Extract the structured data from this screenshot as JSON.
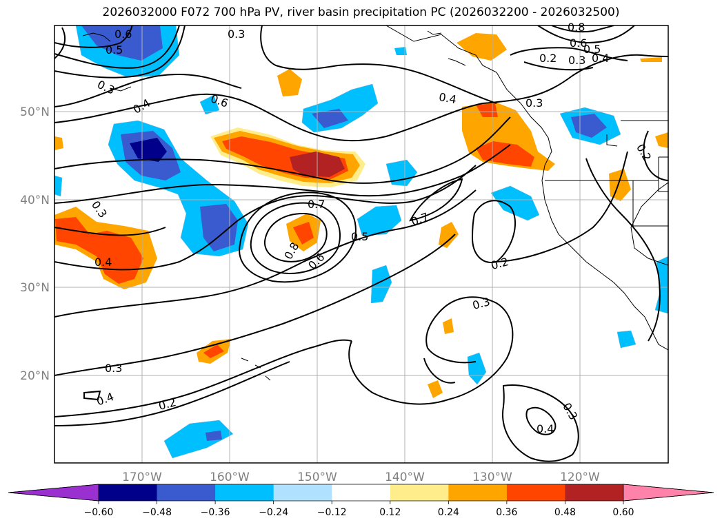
{
  "title": "2026032000 F072 700 hPa PV, river basin precipitation PC (2026032200 - 2026032500)",
  "lon_ticks": [
    "170°W",
    "160°W",
    "150°W",
    "140°W",
    "130°W",
    "120°W"
  ],
  "lat_ticks": [
    "50°N",
    "40°N",
    "30°N",
    "20°N"
  ],
  "colorbar": {
    "ticks": [
      "−0.60",
      "−0.48",
      "−0.36",
      "−0.24",
      "−0.12",
      "0.12",
      "0.24",
      "0.36",
      "0.48",
      "0.60"
    ],
    "colors": [
      "#9b30d0",
      "#00008b",
      "#3a5bcf",
      "#00bfff",
      "#b0e2ff",
      "#ffffff",
      "#ffec8b",
      "#ffa500",
      "#ff4500",
      "#b22222",
      "#ff82ab"
    ]
  },
  "contour_labels": [
    {
      "id": "c1",
      "text": "0.6"
    },
    {
      "id": "c2",
      "text": "0.5"
    },
    {
      "id": "c3",
      "text": "0.3"
    },
    {
      "id": "c4",
      "text": "0.4"
    },
    {
      "id": "c5",
      "text": "0.6"
    },
    {
      "id": "c6",
      "text": "0.4"
    },
    {
      "id": "c7",
      "text": "0.3"
    },
    {
      "id": "c8",
      "text": "0.3"
    },
    {
      "id": "c9",
      "text": "0.4"
    },
    {
      "id": "c10",
      "text": "0.7"
    },
    {
      "id": "c11",
      "text": "0.8"
    },
    {
      "id": "c12",
      "text": "0.6"
    },
    {
      "id": "c13",
      "text": "0.5"
    },
    {
      "id": "c14",
      "text": "0.7"
    },
    {
      "id": "c15",
      "text": "0.2"
    },
    {
      "id": "c16",
      "text": "0.3"
    },
    {
      "id": "c17",
      "text": "0.3"
    },
    {
      "id": "c18",
      "text": "0.4"
    },
    {
      "id": "c19",
      "text": "0.2"
    },
    {
      "id": "c20",
      "text": "0.3"
    },
    {
      "id": "c21",
      "text": "0.4"
    },
    {
      "id": "c22",
      "text": "0.8"
    },
    {
      "id": "c23",
      "text": "0.6"
    },
    {
      "id": "c24",
      "text": "0.5"
    },
    {
      "id": "c25",
      "text": "0.3"
    },
    {
      "id": "c26",
      "text": "0.4"
    },
    {
      "id": "c27",
      "text": "0.2"
    },
    {
      "id": "c28",
      "text": "0.3"
    },
    {
      "id": "c29",
      "text": "0.2"
    }
  ]
}
